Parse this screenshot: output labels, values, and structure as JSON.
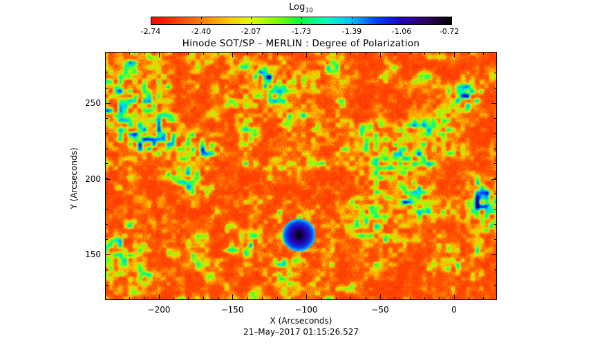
{
  "colorbar": {
    "title": "Log",
    "title_subscript": "10",
    "ticks": [
      "-2.74",
      "-2.40",
      "-2.07",
      "-1.73",
      "-1.39",
      "-1.06",
      "-0.72"
    ],
    "gradient_colors": [
      "#ff0000",
      "#ff4000",
      "#ff8000",
      "#ffc000",
      "#e0ff00",
      "#80ff00",
      "#00ff40",
      "#00ffc0",
      "#00c0ff",
      "#0040ff",
      "#2000c0",
      "#300060",
      "#000000"
    ]
  },
  "plot": {
    "title": "Hinode SOT/SP – MERLIN : Degree of Polarization",
    "xlabel": "X (Arcseconds)",
    "ylabel": "Y (Arcseconds)",
    "x_ticks": [
      "−200",
      "−150",
      "−100",
      "−50",
      "0"
    ],
    "y_ticks": [
      "250",
      "200",
      "150"
    ],
    "x_range": [
      -233,
      26
    ],
    "y_range": [
      119,
      283
    ]
  },
  "timestamp": "21–May–2017 01:15:26.527"
}
